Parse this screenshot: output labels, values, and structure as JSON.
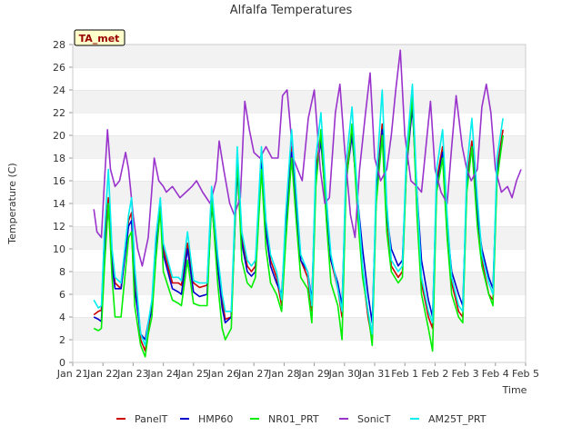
{
  "chart_data": {
    "type": "line",
    "title": "Alfalfa Temperatures",
    "xlabel": "Time",
    "ylabel": "Temperature (C)",
    "ylim": [
      0,
      28
    ],
    "yticks": [
      0,
      2,
      4,
      6,
      8,
      10,
      12,
      14,
      16,
      18,
      20,
      22,
      24,
      26,
      28
    ],
    "xlim": [
      0,
      15
    ],
    "xticks": [
      {
        "pos": 0,
        "label": "Jan 21"
      },
      {
        "pos": 1,
        "label": "Jan 22"
      },
      {
        "pos": 2,
        "label": "Jan 23"
      },
      {
        "pos": 3,
        "label": "Jan 24"
      },
      {
        "pos": 4,
        "label": "Jan 25"
      },
      {
        "pos": 5,
        "label": "Jan 26"
      },
      {
        "pos": 6,
        "label": "Jan 27"
      },
      {
        "pos": 7,
        "label": "Jan 28"
      },
      {
        "pos": 8,
        "label": "Jan 29"
      },
      {
        "pos": 9,
        "label": "Jan 30"
      },
      {
        "pos": 10,
        "label": "Jan 31"
      },
      {
        "pos": 11,
        "label": "Feb 1"
      },
      {
        "pos": 12,
        "label": "Feb 2"
      },
      {
        "pos": 13,
        "label": "Feb 3"
      },
      {
        "pos": 14,
        "label": "Feb 4"
      },
      {
        "pos": 15,
        "label": "Feb 5"
      }
    ],
    "grid": "horizontal bands",
    "annotation": "TA_met",
    "legend_position": "bottom",
    "series": [
      {
        "name": "PanelT",
        "color": "#cc0000",
        "x": [
          0.7,
          0.85,
          0.95,
          1.05,
          1.18,
          1.3,
          1.4,
          1.6,
          1.85,
          1.95,
          2.05,
          2.25,
          2.4,
          2.5,
          2.62,
          2.75,
          2.9,
          3.0,
          3.3,
          3.5,
          3.6,
          3.8,
          4.0,
          4.2,
          4.45,
          4.6,
          4.8,
          4.95,
          5.05,
          5.25,
          5.45,
          5.6,
          5.78,
          5.92,
          6.05,
          6.25,
          6.4,
          6.55,
          6.75,
          6.92,
          7.05,
          7.25,
          7.4,
          7.55,
          7.78,
          7.92,
          8.05,
          8.22,
          8.4,
          8.55,
          8.78,
          8.92,
          9.05,
          9.25,
          9.45,
          9.6,
          9.78,
          9.92,
          10.05,
          10.25,
          10.4,
          10.55,
          10.78,
          10.92,
          11.05,
          11.25,
          11.4,
          11.55,
          11.78,
          11.92,
          12.05,
          12.25,
          12.4,
          12.55,
          12.78,
          12.92,
          13.05,
          13.22,
          13.4,
          13.55,
          13.78,
          13.92,
          14.05,
          14.25
        ],
        "y": [
          4.2,
          4.5,
          4.6,
          11.0,
          14.5,
          9.5,
          7.0,
          6.5,
          12.5,
          13.2,
          8.0,
          2.0,
          1.0,
          3.0,
          5.0,
          10.5,
          14.0,
          10.0,
          7.0,
          7.0,
          6.8,
          10.5,
          7.0,
          6.6,
          6.8,
          14.5,
          9.0,
          5.5,
          3.8,
          4.0,
          17.5,
          11.0,
          8.5,
          8.0,
          8.5,
          18.0,
          12.0,
          9.0,
          7.5,
          5.0,
          12.0,
          19.0,
          14.0,
          9.0,
          7.5,
          4.5,
          17.0,
          20.0,
          14.0,
          9.0,
          6.5,
          4.0,
          16.5,
          20.5,
          13.5,
          8.0,
          4.0,
          2.0,
          15.0,
          21.0,
          13.0,
          8.5,
          7.5,
          8.0,
          17.5,
          23.0,
          14.0,
          7.0,
          4.0,
          3.0,
          16.0,
          19.0,
          12.0,
          7.0,
          4.5,
          4.0,
          16.0,
          19.5,
          13.5,
          9.0,
          6.0,
          5.5,
          17.0,
          20.5
        ]
      },
      {
        "name": "HMP60",
        "color": "#0000cc",
        "x": [
          0.7,
          0.85,
          0.95,
          1.05,
          1.18,
          1.3,
          1.4,
          1.6,
          1.85,
          1.95,
          2.05,
          2.25,
          2.4,
          2.5,
          2.62,
          2.75,
          2.9,
          3.0,
          3.3,
          3.5,
          3.6,
          3.8,
          4.0,
          4.2,
          4.45,
          4.6,
          4.8,
          4.95,
          5.05,
          5.25,
          5.45,
          5.6,
          5.78,
          5.92,
          6.05,
          6.25,
          6.4,
          6.55,
          6.75,
          6.92,
          7.05,
          7.25,
          7.4,
          7.55,
          7.78,
          7.92,
          8.05,
          8.22,
          8.4,
          8.55,
          8.78,
          8.92,
          9.05,
          9.25,
          9.45,
          9.6,
          9.78,
          9.92,
          10.05,
          10.25,
          10.4,
          10.55,
          10.78,
          10.92,
          11.05,
          11.25,
          11.4,
          11.55,
          11.78,
          11.92,
          12.05,
          12.25,
          12.4,
          12.55,
          12.78,
          12.92,
          13.05,
          13.22,
          13.4,
          13.55,
          13.78,
          13.92,
          14.05,
          14.25
        ],
        "y": [
          4.0,
          3.8,
          3.6,
          9.5,
          14.0,
          8.5,
          6.5,
          6.5,
          12.0,
          12.5,
          6.5,
          2.5,
          2.0,
          3.5,
          4.5,
          10.0,
          13.5,
          9.5,
          6.5,
          6.2,
          6.0,
          10.0,
          6.2,
          5.8,
          6.0,
          14.0,
          8.5,
          4.8,
          3.5,
          4.0,
          17.0,
          10.5,
          8.0,
          7.6,
          8.0,
          17.5,
          11.5,
          8.5,
          7.0,
          6.0,
          11.5,
          18.5,
          13.5,
          9.0,
          8.0,
          5.5,
          16.5,
          19.5,
          13.5,
          9.0,
          7.0,
          5.0,
          16.0,
          20.0,
          14.0,
          10.0,
          6.0,
          3.5,
          14.5,
          20.5,
          13.0,
          10.0,
          8.5,
          9.0,
          17.0,
          22.5,
          15.0,
          9.0,
          5.5,
          4.0,
          15.5,
          18.5,
          12.0,
          8.0,
          6.0,
          5.0,
          15.5,
          19.0,
          13.0,
          10.0,
          7.5,
          6.5,
          16.5,
          20.0
        ]
      },
      {
        "name": "NR01_PRT",
        "color": "#00ee00",
        "x": [
          0.7,
          0.85,
          0.95,
          1.05,
          1.18,
          1.3,
          1.4,
          1.6,
          1.85,
          1.95,
          2.05,
          2.25,
          2.4,
          2.5,
          2.62,
          2.75,
          2.9,
          3.0,
          3.3,
          3.5,
          3.6,
          3.8,
          4.0,
          4.2,
          4.45,
          4.6,
          4.8,
          4.95,
          5.05,
          5.25,
          5.45,
          5.6,
          5.78,
          5.92,
          6.05,
          6.25,
          6.4,
          6.55,
          6.75,
          6.92,
          7.05,
          7.25,
          7.4,
          7.55,
          7.78,
          7.92,
          8.05,
          8.22,
          8.4,
          8.55,
          8.78,
          8.92,
          9.05,
          9.25,
          9.45,
          9.6,
          9.78,
          9.92,
          10.05,
          10.25,
          10.4,
          10.55,
          10.78,
          10.92,
          11.05,
          11.25,
          11.4,
          11.55,
          11.78,
          11.92,
          12.05,
          12.25,
          12.4,
          12.55,
          12.78,
          12.92,
          13.05,
          13.22,
          13.4,
          13.55,
          13.78,
          13.92,
          14.05,
          14.25
        ],
        "y": [
          3.0,
          2.8,
          3.0,
          8.5,
          14.0,
          7.5,
          4.0,
          4.0,
          11.0,
          11.5,
          5.0,
          1.5,
          0.5,
          2.5,
          4.0,
          9.0,
          13.5,
          8.0,
          5.5,
          5.2,
          5.0,
          9.0,
          5.2,
          5.0,
          5.0,
          14.5,
          7.0,
          3.0,
          2.0,
          3.0,
          18.0,
          9.0,
          7.0,
          6.6,
          7.5,
          17.0,
          10.0,
          7.0,
          6.0,
          4.5,
          10.5,
          18.0,
          12.5,
          7.5,
          6.5,
          3.5,
          15.5,
          20.5,
          12.5,
          7.0,
          5.0,
          2.0,
          15.5,
          21.0,
          12.5,
          7.5,
          4.5,
          1.5,
          14.0,
          20.0,
          11.5,
          8.0,
          7.0,
          7.5,
          17.0,
          23.5,
          13.0,
          6.0,
          3.0,
          1.0,
          15.0,
          18.0,
          11.0,
          6.0,
          4.0,
          3.5,
          15.0,
          19.0,
          12.0,
          8.5,
          6.0,
          5.0,
          16.0,
          20.0
        ]
      },
      {
        "name": "SonicT",
        "color": "#9933cc",
        "x": [
          0.7,
          0.8,
          0.95,
          1.05,
          1.15,
          1.25,
          1.4,
          1.55,
          1.75,
          1.85,
          2.0,
          2.15,
          2.3,
          2.5,
          2.7,
          2.85,
          3.0,
          3.1,
          3.3,
          3.55,
          3.75,
          3.95,
          4.1,
          4.3,
          4.55,
          4.75,
          4.85,
          5.0,
          5.2,
          5.35,
          5.55,
          5.7,
          5.85,
          6.0,
          6.2,
          6.4,
          6.6,
          6.8,
          6.95,
          7.1,
          7.3,
          7.45,
          7.6,
          7.8,
          8.0,
          8.2,
          8.35,
          8.5,
          8.7,
          8.85,
          9.0,
          9.2,
          9.35,
          9.5,
          9.7,
          9.85,
          10.0,
          10.2,
          10.4,
          10.55,
          10.7,
          10.85,
          11.0,
          11.2,
          11.4,
          11.55,
          11.7,
          11.85,
          12.0,
          12.2,
          12.4,
          12.55,
          12.7,
          12.9,
          13.05,
          13.2,
          13.4,
          13.55,
          13.7,
          13.85,
          14.0,
          14.2,
          14.4,
          14.55,
          14.7,
          14.85
        ],
        "y": [
          13.5,
          11.5,
          11.0,
          16.0,
          20.5,
          17.0,
          15.5,
          16.0,
          18.5,
          17.0,
          13.0,
          10.0,
          8.5,
          11.0,
          18.0,
          16.0,
          15.5,
          15.0,
          15.5,
          14.5,
          15.0,
          15.5,
          16.0,
          15.0,
          14.0,
          16.0,
          19.5,
          17.0,
          14.0,
          13.0,
          14.5,
          23.0,
          20.5,
          18.5,
          18.0,
          19.0,
          18.0,
          18.0,
          23.5,
          24.0,
          18.0,
          17.0,
          16.0,
          21.5,
          24.0,
          17.0,
          14.0,
          14.5,
          22.0,
          24.5,
          19.0,
          13.0,
          11.0,
          17.0,
          22.0,
          25.5,
          18.0,
          16.0,
          17.0,
          20.0,
          24.0,
          27.5,
          20.0,
          16.0,
          15.5,
          15.0,
          19.0,
          23.0,
          17.0,
          15.0,
          14.0,
          19.0,
          23.5,
          19.0,
          17.0,
          16.0,
          17.0,
          22.5,
          24.5,
          22.0,
          17.0,
          15.0,
          15.5,
          14.5,
          16.0,
          17.0
        ]
      },
      {
        "name": "AM25T_PRT",
        "color": "#00eeee",
        "x": [
          0.7,
          0.85,
          0.95,
          1.05,
          1.18,
          1.3,
          1.4,
          1.6,
          1.85,
          1.95,
          2.05,
          2.25,
          2.4,
          2.5,
          2.62,
          2.75,
          2.9,
          3.0,
          3.3,
          3.5,
          3.6,
          3.8,
          4.0,
          4.2,
          4.45,
          4.6,
          4.8,
          4.95,
          5.05,
          5.25,
          5.45,
          5.6,
          5.78,
          5.92,
          6.05,
          6.25,
          6.4,
          6.55,
          6.75,
          6.92,
          7.05,
          7.25,
          7.4,
          7.55,
          7.78,
          7.92,
          8.05,
          8.22,
          8.4,
          8.55,
          8.78,
          8.92,
          9.05,
          9.25,
          9.45,
          9.6,
          9.78,
          9.92,
          10.05,
          10.25,
          10.4,
          10.55,
          10.78,
          10.92,
          11.05,
          11.25,
          11.4,
          11.55,
          11.78,
          11.92,
          12.05,
          12.25,
          12.4,
          12.55,
          12.78,
          12.92,
          13.05,
          13.22,
          13.4,
          13.55,
          13.78,
          13.92,
          14.05,
          14.25
        ],
        "y": [
          5.5,
          4.8,
          5.0,
          11.5,
          17.0,
          10.0,
          7.5,
          7.0,
          13.0,
          14.5,
          8.5,
          2.5,
          1.5,
          3.5,
          5.5,
          11.0,
          14.5,
          10.5,
          7.5,
          7.5,
          7.2,
          11.5,
          7.2,
          7.0,
          7.0,
          15.5,
          9.5,
          6.0,
          4.5,
          4.5,
          19.0,
          11.5,
          9.0,
          8.5,
          9.0,
          19.0,
          12.5,
          9.5,
          8.0,
          5.5,
          13.0,
          20.5,
          15.0,
          9.5,
          8.0,
          5.0,
          18.0,
          22.0,
          14.5,
          9.5,
          6.5,
          4.5,
          17.5,
          22.5,
          14.0,
          8.5,
          4.5,
          2.5,
          16.0,
          24.0,
          14.0,
          9.0,
          8.0,
          8.5,
          18.5,
          24.5,
          15.0,
          7.5,
          4.5,
          3.5,
          17.0,
          20.5,
          13.0,
          7.5,
          5.0,
          4.5,
          17.0,
          21.5,
          14.5,
          9.5,
          7.0,
          6.0,
          18.0,
          21.5
        ]
      }
    ]
  }
}
